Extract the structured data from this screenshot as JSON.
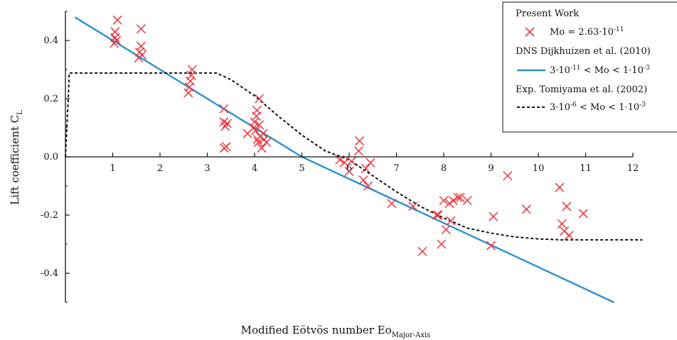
{
  "chart_data": {
    "type": "scatter",
    "xlabel": "Modified Eötvös number Eo",
    "xlabel_sub": "Major-Axis",
    "ylabel": "Lift coefficient C",
    "ylabel_sub": "L",
    "xlim": [
      0,
      12
    ],
    "ylim": [
      -0.5,
      0.5
    ],
    "x_ticks": [
      1,
      2,
      3,
      4,
      5,
      6,
      7,
      8,
      9,
      10,
      11,
      12
    ],
    "y_ticks": [
      -0.4,
      -0.2,
      0.0,
      0.2,
      0.4
    ],
    "y_tick_labels": [
      "-0.4",
      "-0.2",
      "0.0",
      "0.2",
      "0.4"
    ],
    "grid": false,
    "legend_position": "top-right",
    "legend": {
      "present_title": "Present Work",
      "present_prefix": "Mo = 2.63·10",
      "present_exp": "-11",
      "dns_title": "DNS Dijkhuizen et al. (2010)",
      "dns_a": "3·10",
      "dns_a_exp": "-11",
      "dns_b": " < Mo < 1·10",
      "dns_b_exp": "-3",
      "exp_title": "Exp. Tomiyama et al. (2002)",
      "exp_a": "3·10",
      "exp_a_exp": "-6",
      "exp_b": " < Mo < 1·10",
      "exp_b_exp": "-3"
    },
    "series": [
      {
        "name": "Present Work",
        "kind": "scatter",
        "color": "#e8373f",
        "points": [
          [
            1.03,
            0.39
          ],
          [
            1.05,
            0.41
          ],
          [
            1.05,
            0.43
          ],
          [
            1.08,
            0.4
          ],
          [
            1.1,
            0.47
          ],
          [
            1.55,
            0.34
          ],
          [
            1.57,
            0.36
          ],
          [
            1.6,
            0.38
          ],
          [
            1.6,
            0.44
          ],
          [
            1.62,
            0.35
          ],
          [
            2.6,
            0.22
          ],
          [
            2.62,
            0.24
          ],
          [
            2.64,
            0.26
          ],
          [
            2.66,
            0.28
          ],
          [
            2.68,
            0.3
          ],
          [
            3.35,
            0.165
          ],
          [
            3.35,
            0.12
          ],
          [
            3.38,
            0.105
          ],
          [
            3.4,
            0.035
          ],
          [
            3.42,
            0.115
          ],
          [
            3.36,
            0.03
          ],
          [
            3.85,
            0.08
          ],
          [
            3.98,
            0.1
          ],
          [
            4.0,
            0.12
          ],
          [
            4.02,
            0.09
          ],
          [
            4.04,
            0.14
          ],
          [
            4.05,
            0.16
          ],
          [
            4.06,
            0.06
          ],
          [
            4.08,
            0.05
          ],
          [
            4.1,
            0.2
          ],
          [
            4.1,
            0.11
          ],
          [
            4.12,
            0.07
          ],
          [
            4.15,
            0.03
          ],
          [
            4.18,
            0.08
          ],
          [
            4.2,
            0.06
          ],
          [
            4.25,
            0.05
          ],
          [
            5.8,
            -0.01
          ],
          [
            5.9,
            -0.02
          ],
          [
            6.0,
            -0.05
          ],
          [
            6.05,
            -0.015
          ],
          [
            6.2,
            0.02
          ],
          [
            6.22,
            0.055
          ],
          [
            6.3,
            -0.08
          ],
          [
            6.35,
            -0.04
          ],
          [
            6.4,
            -0.1
          ],
          [
            6.45,
            -0.02
          ],
          [
            6.9,
            -0.16
          ],
          [
            7.35,
            -0.17
          ],
          [
            7.55,
            -0.325
          ],
          [
            7.85,
            -0.2
          ],
          [
            7.88,
            -0.2
          ],
          [
            7.95,
            -0.3
          ],
          [
            8.0,
            -0.15
          ],
          [
            8.05,
            -0.25
          ],
          [
            8.12,
            -0.16
          ],
          [
            8.15,
            -0.22
          ],
          [
            8.2,
            -0.15
          ],
          [
            8.3,
            -0.14
          ],
          [
            8.35,
            -0.14
          ],
          [
            8.5,
            -0.15
          ],
          [
            9.0,
            -0.305
          ],
          [
            9.05,
            -0.205
          ],
          [
            9.35,
            -0.065
          ],
          [
            9.75,
            -0.18
          ],
          [
            10.45,
            -0.105
          ],
          [
            10.5,
            -0.23
          ],
          [
            10.55,
            -0.255
          ],
          [
            10.6,
            -0.17
          ],
          [
            10.65,
            -0.27
          ],
          [
            10.95,
            -0.195
          ]
        ]
      },
      {
        "name": "DNS Dijkhuizen et al. (2010)",
        "kind": "line",
        "color": "#2e8fd0",
        "points": [
          [
            0.2,
            0.48
          ],
          [
            5.0,
            0.0
          ],
          [
            11.6,
            -0.5
          ]
        ]
      },
      {
        "name": "Exp. Tomiyama et al. (2002)",
        "kind": "dashed",
        "color": "#111111",
        "points": [
          [
            0.0,
            0.0
          ],
          [
            0.06,
            0.2
          ],
          [
            0.08,
            0.288
          ],
          [
            3.2,
            0.288
          ],
          [
            3.5,
            0.265
          ],
          [
            4.0,
            0.21
          ],
          [
            4.5,
            0.14
          ],
          [
            5.0,
            0.075
          ],
          [
            5.5,
            0.02
          ],
          [
            6.0,
            -0.01
          ],
          [
            6.5,
            -0.065
          ],
          [
            7.0,
            -0.12
          ],
          [
            7.5,
            -0.17
          ],
          [
            8.0,
            -0.21
          ],
          [
            8.5,
            -0.245
          ],
          [
            9.0,
            -0.262
          ],
          [
            9.5,
            -0.275
          ],
          [
            10.0,
            -0.282
          ],
          [
            10.5,
            -0.285
          ],
          [
            12.2,
            -0.285
          ]
        ]
      }
    ]
  }
}
